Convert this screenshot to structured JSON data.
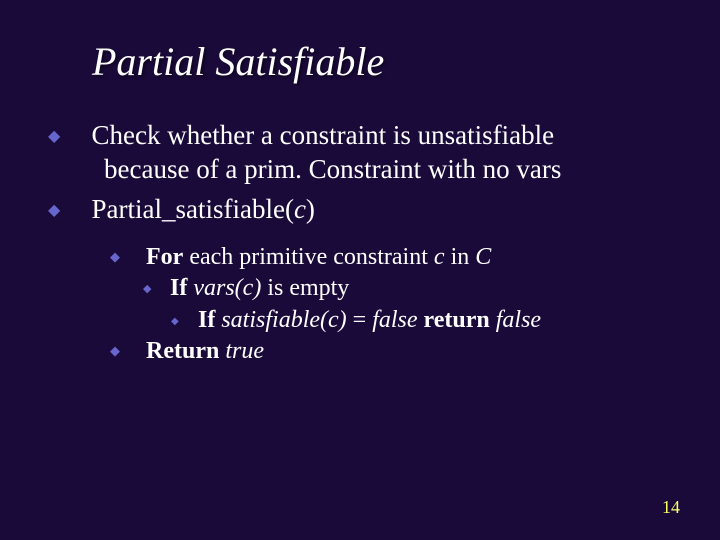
{
  "slide": {
    "background_color": "#1a0a3a",
    "text_color": "#ffffff",
    "bullet_color": "#6666cc",
    "pagenum_color": "#ffff66",
    "title_fontsize": 40,
    "body_fontsize_l1": 27,
    "body_fontsize_sub": 24,
    "title": "Partial Satisfiable",
    "bullet1_line1": "Check whether a constraint is unsatisfiable",
    "bullet1_line2": "because of a prim. Constraint with no vars",
    "bullet2_prefix": "Partial_satisfiable(",
    "bullet2_arg": "c",
    "bullet2_suffix": ")",
    "sub1_bold": "For",
    "sub1_text1": " each primitive constraint ",
    "sub1_ital1": "c",
    "sub1_text2": " in ",
    "sub1_ital2": "C",
    "sub2_bold": "If",
    "sub2_text1": " ",
    "sub2_ital": "vars(c)",
    "sub2_text2": " is empty",
    "sub3_bold1": "If",
    "sub3_text1": " ",
    "sub3_ital1": "satisfiable(c)",
    "sub3_text2": " = ",
    "sub3_ital2": "false",
    "sub3_text3": " ",
    "sub3_bold2": "return",
    "sub3_text4": " ",
    "sub3_ital3": "false",
    "sub4_bold": "Return",
    "sub4_text": " ",
    "sub4_ital": "true",
    "page_number": "14"
  }
}
